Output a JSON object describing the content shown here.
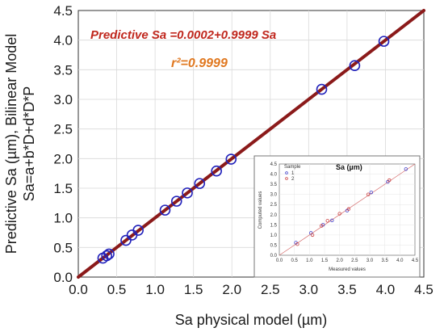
{
  "chart_data": [
    {
      "type": "scatter",
      "xlabel": "Sa physical model (µm)",
      "ylabel_line1": "Predictive Sa (µm), Bilinear Model",
      "ylabel_line2": "Sa=a+b*D+d*D*P",
      "xlim": [
        0,
        4.5
      ],
      "ylim": [
        0,
        4.5
      ],
      "x_ticks": [
        "0.0",
        "0.5",
        "1.0",
        "1.5",
        "2.0",
        "2.5",
        "3.0",
        "3.5",
        "4.0",
        "4.5"
      ],
      "y_ticks": [
        "0.0",
        "0.5",
        "1.0",
        "1.5",
        "2.0",
        "2.5",
        "3.0",
        "3.5",
        "4.0",
        "4.5"
      ],
      "grid": true,
      "annotation_equation": "Predictive Sa =0.0002+0.9999 Sa",
      "annotation_r2": "r²=0.9999",
      "fit_line": {
        "intercept": 0.0002,
        "slope": 0.9999,
        "color": "#8b1a1a"
      },
      "marker_color": "#2222bb",
      "points": [
        {
          "x": 0.32,
          "y": 0.32
        },
        {
          "x": 0.37,
          "y": 0.36
        },
        {
          "x": 0.4,
          "y": 0.39
        },
        {
          "x": 0.62,
          "y": 0.62
        },
        {
          "x": 0.7,
          "y": 0.71
        },
        {
          "x": 0.78,
          "y": 0.79
        },
        {
          "x": 1.13,
          "y": 1.13
        },
        {
          "x": 1.28,
          "y": 1.28
        },
        {
          "x": 1.42,
          "y": 1.42
        },
        {
          "x": 1.58,
          "y": 1.58
        },
        {
          "x": 1.8,
          "y": 1.79
        },
        {
          "x": 1.99,
          "y": 1.99
        },
        {
          "x": 3.17,
          "y": 3.17
        },
        {
          "x": 3.6,
          "y": 3.57
        },
        {
          "x": 3.98,
          "y": 3.98
        }
      ]
    },
    {
      "type": "scatter",
      "title": "Sa (µm)",
      "legend_title": "Sample",
      "legend": [
        {
          "name": "1",
          "color": "#4444cc"
        },
        {
          "name": "2",
          "color": "#cc4444"
        }
      ],
      "xlabel": "Measured values",
      "ylabel": "Computed values",
      "xlim": [
        0,
        4.5
      ],
      "ylim": [
        0,
        4.5
      ],
      "x_ticks": [
        "0.0",
        "0.5",
        "1.0",
        "1.5",
        "2.0",
        "2.5",
        "3.0",
        "3.5",
        "4.0",
        "4.5"
      ],
      "y_ticks": [
        "0.0",
        "0.5",
        "1.0",
        "1.5",
        "2.0",
        "2.5",
        "3.0",
        "3.5",
        "4.0",
        "4.5"
      ],
      "series": [
        {
          "name": "1",
          "points": [
            {
              "x": 0.55,
              "y": 0.62
            },
            {
              "x": 1.05,
              "y": 1.1
            },
            {
              "x": 1.45,
              "y": 1.5
            },
            {
              "x": 1.75,
              "y": 1.72
            },
            {
              "x": 2.25,
              "y": 2.2
            },
            {
              "x": 3.05,
              "y": 3.1
            },
            {
              "x": 3.6,
              "y": 3.62
            },
            {
              "x": 4.2,
              "y": 4.25
            }
          ]
        },
        {
          "name": "2",
          "points": [
            {
              "x": 0.6,
              "y": 0.55
            },
            {
              "x": 1.1,
              "y": 1.0
            },
            {
              "x": 1.4,
              "y": 1.45
            },
            {
              "x": 1.6,
              "y": 1.7
            },
            {
              "x": 2.0,
              "y": 2.05
            },
            {
              "x": 2.3,
              "y": 2.28
            },
            {
              "x": 2.95,
              "y": 3.0
            },
            {
              "x": 3.65,
              "y": 3.7
            }
          ]
        }
      ]
    }
  ]
}
